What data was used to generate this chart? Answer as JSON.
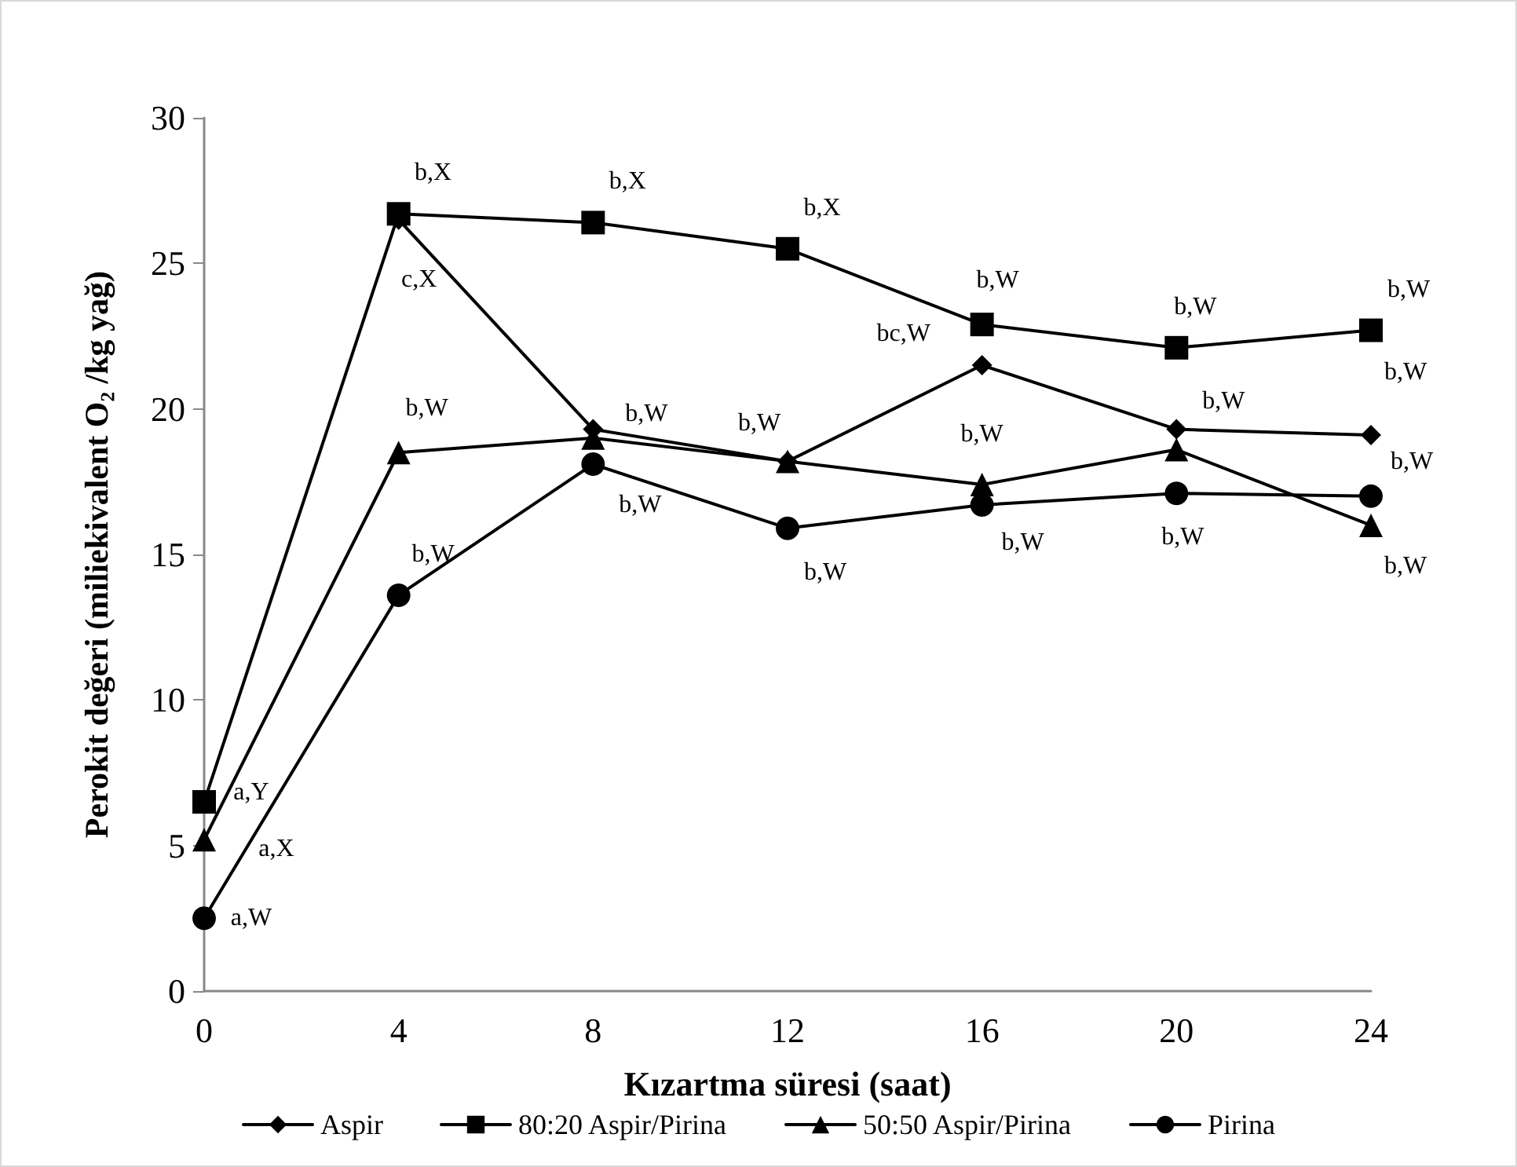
{
  "chart_data": {
    "type": "line",
    "xlabel": "Kızartma süresi (saat)",
    "ylabel": "Perokit değeri (miliekivalent O₂ /kg yağ)",
    "x": [
      0,
      4,
      8,
      12,
      16,
      20,
      24
    ],
    "xlim": [
      0,
      24
    ],
    "xticks": [
      0,
      4,
      8,
      12,
      16,
      20,
      24
    ],
    "ylim": [
      0,
      30
    ],
    "yticks": [
      0,
      5,
      10,
      15,
      20,
      25,
      30
    ],
    "grid": false,
    "legend": "bottom",
    "line_style": "solid",
    "series": [
      {
        "name": "Aspir",
        "color": "#000000",
        "marker": "diamond",
        "values": [
          null,
          26.5,
          19.3,
          18.2,
          21.5,
          19.3,
          19.1
        ],
        "value_labels": [
          null,
          "c,X",
          "b,W",
          null,
          "bc,W",
          "b,W",
          "b,W"
        ]
      },
      {
        "name": "80:20 Aspir/Pirina",
        "color": "#000000",
        "marker": "square",
        "values": [
          6.5,
          26.7,
          26.4,
          25.5,
          22.9,
          22.1,
          22.7
        ],
        "value_labels": [
          "a,Y",
          "b,X",
          "b,X",
          "b,X",
          "b,W",
          "b,W",
          "b,W"
        ]
      },
      {
        "name": "50:50 Aspir/Pirina",
        "color": "#000000",
        "marker": "triangle",
        "values": [
          5.2,
          18.5,
          19.0,
          18.2,
          17.4,
          18.6,
          16.0
        ],
        "value_labels": [
          "a,X",
          "b,W",
          null,
          "b,W",
          "b,W",
          null,
          "b,W"
        ]
      },
      {
        "name": "Pirina",
        "color": "#000000",
        "marker": "circle",
        "values": [
          2.5,
          13.6,
          18.1,
          15.9,
          16.7,
          17.1,
          17.0
        ],
        "value_labels": [
          "a,W",
          "b,W",
          "b,W",
          "b,W",
          "b,W",
          "b,W",
          "b,W"
        ]
      }
    ]
  }
}
